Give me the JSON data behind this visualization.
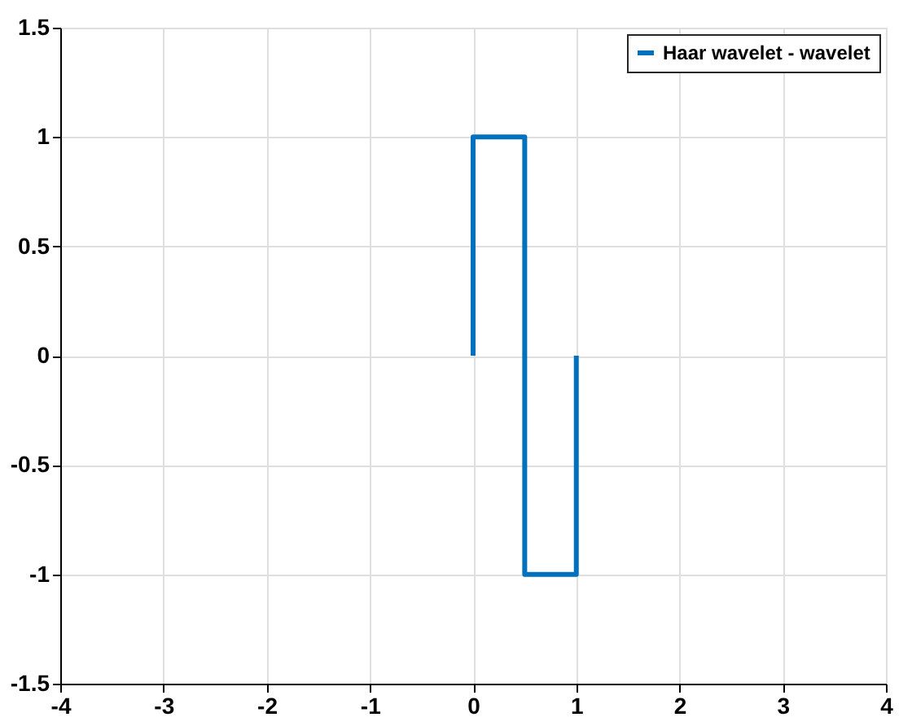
{
  "chart_data": {
    "type": "line",
    "x": [
      0,
      0,
      0.5,
      0.5,
      1,
      1
    ],
    "series": [
      {
        "name": "Haar wavelet - wavelet",
        "color": "#0072bd",
        "values": [
          0,
          1,
          1,
          -1,
          -1,
          0
        ]
      }
    ],
    "xlim": [
      -4,
      4
    ],
    "xticks": [
      -4,
      -3,
      -2,
      -1,
      0,
      1,
      2,
      3,
      4
    ],
    "ylim": [
      -1.5,
      1.5
    ],
    "yticks": [
      -1.5,
      -1,
      -0.5,
      0,
      0.5,
      1,
      1.5
    ],
    "grid": true,
    "legend": "top right",
    "marker": "none",
    "line_style": "solid"
  }
}
